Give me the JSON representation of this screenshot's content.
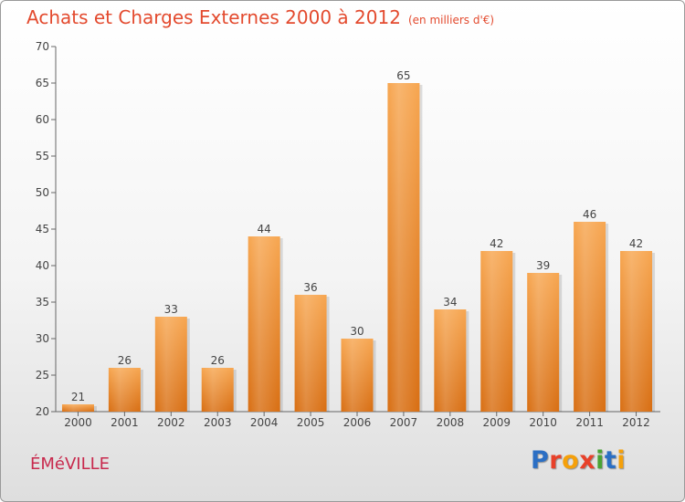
{
  "title": "Achats et Charges Externes 2000 à 2012",
  "unit": "(en milliers d'€)",
  "commune": "ÉMéVILLE",
  "logo": {
    "text": "Proxiti",
    "colors": [
      "#2b6fc4",
      "#e8412a",
      "#f5a00a",
      "#e8412a",
      "#4aa334",
      "#2b6fc4",
      "#f5a00a"
    ]
  },
  "chart_data": {
    "type": "bar",
    "categories": [
      "2000",
      "2001",
      "2002",
      "2003",
      "2004",
      "2005",
      "2006",
      "2007",
      "2008",
      "2009",
      "2010",
      "2011",
      "2012"
    ],
    "values": [
      21,
      26,
      33,
      26,
      44,
      36,
      30,
      65,
      34,
      42,
      39,
      46,
      42
    ],
    "ylim": [
      20,
      70
    ],
    "yticks": [
      20,
      25,
      30,
      35,
      40,
      45,
      50,
      55,
      60,
      65,
      70
    ],
    "grid": false,
    "bar_color": "#f08a2a"
  }
}
